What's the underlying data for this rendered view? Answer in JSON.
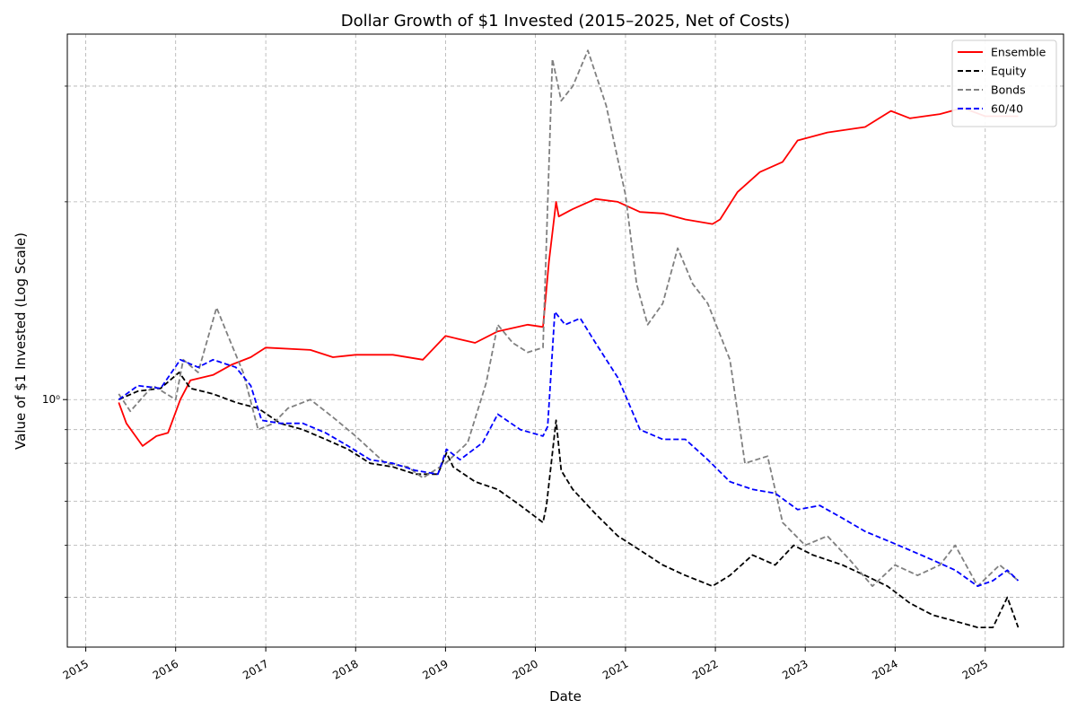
{
  "chart_data": {
    "type": "line",
    "title": "Dollar Growth of $1 Invested (2015–2025, Net of Costs)",
    "xlabel": "Date",
    "ylabel": "Value of $1 Invested (Log Scale)",
    "yscale": "log",
    "xlim": [
      "2014-10-18",
      "2025-11-15"
    ],
    "ylim": [
      0.42,
      3.6
    ],
    "x_ticks": [
      "2015",
      "2016",
      "2017",
      "2018",
      "2019",
      "2020",
      "2021",
      "2022",
      "2023",
      "2024",
      "2025"
    ],
    "y_tick_labels": [
      {
        "value": 1.0,
        "label": "10⁰"
      }
    ],
    "y_minor_ticks": [
      0.5,
      0.6,
      0.7,
      0.8,
      0.9,
      2,
      3
    ],
    "grid": true,
    "legend_position": "top-right",
    "series": [
      {
        "name": "Ensemble",
        "color": "#ff0000",
        "style": "solid",
        "points": [
          [
            "2015-05-15",
            0.99
          ],
          [
            "2015-06-15",
            0.92
          ],
          [
            "2015-08-20",
            0.85
          ],
          [
            "2015-10-15",
            0.88
          ],
          [
            "2015-12-01",
            0.89
          ],
          [
            "2016-01-20",
            1.0
          ],
          [
            "2016-03-01",
            1.07
          ],
          [
            "2016-06-01",
            1.09
          ],
          [
            "2016-08-15",
            1.13
          ],
          [
            "2016-11-01",
            1.16
          ],
          [
            "2017-01-01",
            1.2
          ],
          [
            "2017-07-01",
            1.19
          ],
          [
            "2017-10-01",
            1.16
          ],
          [
            "2018-01-01",
            1.17
          ],
          [
            "2018-06-01",
            1.17
          ],
          [
            "2018-10-01",
            1.15
          ],
          [
            "2019-01-01",
            1.25
          ],
          [
            "2019-05-01",
            1.22
          ],
          [
            "2019-08-01",
            1.27
          ],
          [
            "2019-12-01",
            1.3
          ],
          [
            "2020-02-01",
            1.29
          ],
          [
            "2020-02-25",
            1.62
          ],
          [
            "2020-03-25",
            2.0
          ],
          [
            "2020-04-05",
            1.9
          ],
          [
            "2020-06-01",
            1.95
          ],
          [
            "2020-09-01",
            2.02
          ],
          [
            "2020-12-01",
            2.0
          ],
          [
            "2021-03-01",
            1.93
          ],
          [
            "2021-06-01",
            1.92
          ],
          [
            "2021-09-01",
            1.88
          ],
          [
            "2021-12-20",
            1.85
          ],
          [
            "2022-01-20",
            1.88
          ],
          [
            "2022-04-01",
            2.07
          ],
          [
            "2022-07-01",
            2.22
          ],
          [
            "2022-10-01",
            2.3
          ],
          [
            "2022-12-01",
            2.48
          ],
          [
            "2023-04-01",
            2.55
          ],
          [
            "2023-09-01",
            2.6
          ],
          [
            "2023-12-15",
            2.75
          ],
          [
            "2024-03-01",
            2.68
          ],
          [
            "2024-07-01",
            2.72
          ],
          [
            "2024-10-01",
            2.78
          ],
          [
            "2025-01-01",
            2.7
          ],
          [
            "2025-05-15",
            2.7
          ]
        ]
      },
      {
        "name": "Equity",
        "color": "#000000",
        "style": "dashed",
        "points": [
          [
            "2015-05-15",
            1.0
          ],
          [
            "2015-08-01",
            1.03
          ],
          [
            "2015-11-01",
            1.04
          ],
          [
            "2016-01-15",
            1.1
          ],
          [
            "2016-03-01",
            1.04
          ],
          [
            "2016-06-01",
            1.02
          ],
          [
            "2016-09-01",
            0.99
          ],
          [
            "2016-12-01",
            0.97
          ],
          [
            "2017-03-01",
            0.92
          ],
          [
            "2017-06-01",
            0.9
          ],
          [
            "2017-09-01",
            0.87
          ],
          [
            "2017-12-01",
            0.84
          ],
          [
            "2018-03-01",
            0.8
          ],
          [
            "2018-06-01",
            0.79
          ],
          [
            "2018-09-01",
            0.77
          ],
          [
            "2018-12-01",
            0.77
          ],
          [
            "2019-01-05",
            0.83
          ],
          [
            "2019-02-01",
            0.79
          ],
          [
            "2019-05-01",
            0.75
          ],
          [
            "2019-08-01",
            0.73
          ],
          [
            "2019-11-01",
            0.69
          ],
          [
            "2020-02-01",
            0.65
          ],
          [
            "2020-02-15",
            0.69
          ],
          [
            "2020-03-25",
            0.93
          ],
          [
            "2020-04-15",
            0.78
          ],
          [
            "2020-06-01",
            0.73
          ],
          [
            "2020-09-01",
            0.67
          ],
          [
            "2020-12-01",
            0.62
          ],
          [
            "2021-03-01",
            0.59
          ],
          [
            "2021-06-01",
            0.56
          ],
          [
            "2021-09-01",
            0.54
          ],
          [
            "2021-12-20",
            0.52
          ],
          [
            "2022-03-01",
            0.54
          ],
          [
            "2022-06-01",
            0.58
          ],
          [
            "2022-09-01",
            0.56
          ],
          [
            "2022-11-15",
            0.6
          ],
          [
            "2023-02-01",
            0.58
          ],
          [
            "2023-06-01",
            0.56
          ],
          [
            "2023-09-01",
            0.54
          ],
          [
            "2023-12-01",
            0.52
          ],
          [
            "2024-03-01",
            0.49
          ],
          [
            "2024-06-01",
            0.47
          ],
          [
            "2024-09-01",
            0.46
          ],
          [
            "2024-12-01",
            0.45
          ],
          [
            "2025-02-01",
            0.45
          ],
          [
            "2025-04-01",
            0.5
          ],
          [
            "2025-05-15",
            0.45
          ]
        ]
      },
      {
        "name": "Bonds",
        "color": "#808080",
        "style": "dashed",
        "points": [
          [
            "2015-05-15",
            1.02
          ],
          [
            "2015-07-01",
            0.96
          ],
          [
            "2015-10-01",
            1.05
          ],
          [
            "2016-01-01",
            1.0
          ],
          [
            "2016-02-01",
            1.15
          ],
          [
            "2016-04-01",
            1.1
          ],
          [
            "2016-06-15",
            1.38
          ],
          [
            "2016-08-01",
            1.25
          ],
          [
            "2016-10-01",
            1.1
          ],
          [
            "2016-12-01",
            0.9
          ],
          [
            "2017-02-01",
            0.92
          ],
          [
            "2017-04-01",
            0.97
          ],
          [
            "2017-07-01",
            1.0
          ],
          [
            "2017-10-01",
            0.94
          ],
          [
            "2018-01-01",
            0.88
          ],
          [
            "2018-05-01",
            0.8
          ],
          [
            "2018-08-01",
            0.79
          ],
          [
            "2018-10-01",
            0.76
          ],
          [
            "2019-01-01",
            0.8
          ],
          [
            "2019-04-01",
            0.86
          ],
          [
            "2019-06-15",
            1.06
          ],
          [
            "2019-08-01",
            1.3
          ],
          [
            "2019-10-01",
            1.22
          ],
          [
            "2019-12-01",
            1.18
          ],
          [
            "2020-02-01",
            1.2
          ],
          [
            "2020-03-10",
            3.3
          ],
          [
            "2020-04-15",
            2.85
          ],
          [
            "2020-06-01",
            3.0
          ],
          [
            "2020-08-01",
            3.4
          ],
          [
            "2020-10-15",
            2.8
          ],
          [
            "2021-01-01",
            2.05
          ],
          [
            "2021-02-15",
            1.5
          ],
          [
            "2021-04-01",
            1.3
          ],
          [
            "2021-06-01",
            1.4
          ],
          [
            "2021-08-01",
            1.7
          ],
          [
            "2021-10-01",
            1.5
          ],
          [
            "2021-12-01",
            1.4
          ],
          [
            "2022-03-01",
            1.15
          ],
          [
            "2022-05-01",
            0.8
          ],
          [
            "2022-08-01",
            0.82
          ],
          [
            "2022-10-01",
            0.65
          ],
          [
            "2023-01-01",
            0.6
          ],
          [
            "2023-04-01",
            0.62
          ],
          [
            "2023-07-01",
            0.57
          ],
          [
            "2023-10-01",
            0.52
          ],
          [
            "2024-01-01",
            0.56
          ],
          [
            "2024-04-01",
            0.54
          ],
          [
            "2024-07-01",
            0.56
          ],
          [
            "2024-09-01",
            0.6
          ],
          [
            "2024-12-01",
            0.52
          ],
          [
            "2025-03-01",
            0.56
          ],
          [
            "2025-05-15",
            0.53
          ]
        ]
      },
      {
        "name": "60/40",
        "color": "#0000ff",
        "style": "dashed",
        "points": [
          [
            "2015-05-15",
            1.0
          ],
          [
            "2015-08-01",
            1.05
          ],
          [
            "2015-11-01",
            1.04
          ],
          [
            "2016-01-20",
            1.15
          ],
          [
            "2016-04-01",
            1.12
          ],
          [
            "2016-06-01",
            1.15
          ],
          [
            "2016-09-01",
            1.12
          ],
          [
            "2016-11-01",
            1.05
          ],
          [
            "2016-12-15",
            0.93
          ],
          [
            "2017-03-01",
            0.92
          ],
          [
            "2017-06-01",
            0.92
          ],
          [
            "2017-09-01",
            0.89
          ],
          [
            "2017-12-01",
            0.85
          ],
          [
            "2018-03-01",
            0.81
          ],
          [
            "2018-06-01",
            0.8
          ],
          [
            "2018-09-01",
            0.78
          ],
          [
            "2018-12-01",
            0.77
          ],
          [
            "2019-01-05",
            0.84
          ],
          [
            "2019-03-01",
            0.81
          ],
          [
            "2019-06-01",
            0.86
          ],
          [
            "2019-08-01",
            0.95
          ],
          [
            "2019-11-01",
            0.9
          ],
          [
            "2020-02-01",
            0.88
          ],
          [
            "2020-02-20",
            0.91
          ],
          [
            "2020-03-20",
            1.36
          ],
          [
            "2020-05-01",
            1.3
          ],
          [
            "2020-07-01",
            1.33
          ],
          [
            "2020-09-01",
            1.22
          ],
          [
            "2020-12-01",
            1.08
          ],
          [
            "2021-03-01",
            0.9
          ],
          [
            "2021-06-01",
            0.87
          ],
          [
            "2021-09-01",
            0.87
          ],
          [
            "2021-12-01",
            0.81
          ],
          [
            "2022-03-01",
            0.75
          ],
          [
            "2022-06-01",
            0.73
          ],
          [
            "2022-09-01",
            0.72
          ],
          [
            "2022-12-01",
            0.68
          ],
          [
            "2023-03-01",
            0.69
          ],
          [
            "2023-06-01",
            0.66
          ],
          [
            "2023-09-01",
            0.63
          ],
          [
            "2023-12-01",
            0.61
          ],
          [
            "2024-03-01",
            0.59
          ],
          [
            "2024-06-01",
            0.57
          ],
          [
            "2024-09-01",
            0.55
          ],
          [
            "2024-12-01",
            0.52
          ],
          [
            "2025-02-01",
            0.53
          ],
          [
            "2025-04-01",
            0.55
          ],
          [
            "2025-05-15",
            0.53
          ]
        ]
      }
    ]
  }
}
